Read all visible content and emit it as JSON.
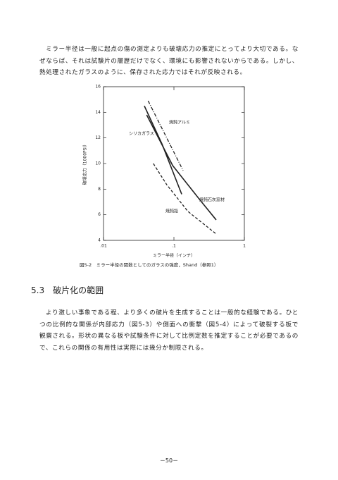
{
  "paragraphs": [
    "ミラー半径は一般に起点の傷の測定よりも破壊応力の推定にとってより大切である。なぜならば、それは試験片の履歴だけでなく、環境にも影響されないからである。しかし、熱処理されたガラスのように、保存された応力ではそれが反映される。",
    "より激しい事象である程、より多くの破片を生成することは一般的な経験である。ひとつの比例的な関係が内部応力（図5-3）や側面への衝撃（図5-4）によって破裂する板で観察される。形状の異なる板や試験条件に対して比例定数を推定することが必要であるので、これらの関係の有用性は実際には幾分か制限される。"
  ],
  "section_heading": "5.3　破片化の範囲",
  "page_number": "－50－",
  "chart_data": {
    "type": "line",
    "caption": "図5-2　ミラー半径の関数としてのガラスの強度，Shand（参照1）",
    "x_label": "ミラー半径（インチ）",
    "y_label": "破壊応力（1000PSI）",
    "xscale": "log",
    "xlim": [
      0.01,
      1
    ],
    "xticks": [
      {
        "value": 0.01,
        "label": ".01"
      },
      {
        "value": 0.1,
        "label": ".1"
      },
      1
    ],
    "ylim": [
      4,
      16
    ],
    "yticks": [
      4,
      6,
      8,
      10,
      12,
      14,
      16
    ],
    "series": [
      {
        "name": "焼鈍アルミ",
        "color": "#222",
        "linestyle": "dashdot",
        "x": [
          0.043,
          0.135
        ],
        "values": [
          14.9,
          9.45
        ]
      },
      {
        "name": "シリカガラス",
        "color": "#222",
        "linestyle": "solid",
        "x": [
          0.038,
          0.068,
          0.129
        ],
        "values": [
          14.5,
          11.5,
          7.6
        ]
      },
      {
        "name": "焼鈍石灰窓材",
        "color": "#222",
        "linestyle": "solid",
        "x": [
          0.041,
          0.096,
          0.24,
          0.398
        ],
        "values": [
          13.8,
          9.84,
          7.08,
          5.6
        ]
      },
      {
        "name": "焼鈍鉛",
        "color": "#222",
        "linestyle": "dashed",
        "x": [
          0.051,
          0.079,
          0.158,
          0.398
        ],
        "values": [
          10.0,
          8.35,
          6.26,
          4.5
        ]
      }
    ]
  }
}
